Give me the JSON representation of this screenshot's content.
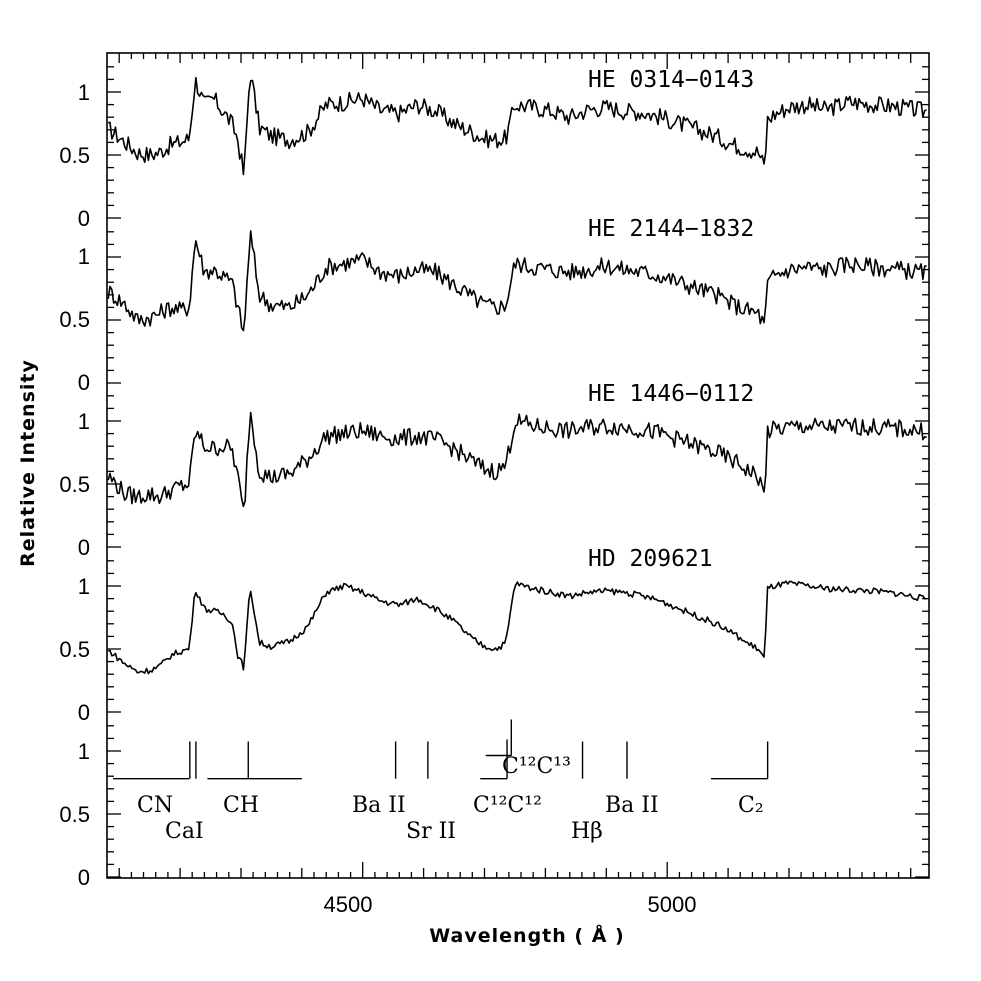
{
  "chart_data": {
    "type": "line",
    "xlabel": "Wavelength ( Å )",
    "ylabel": "Relative Intensity",
    "xlim": [
      4080,
      5430
    ],
    "x_ticks": [
      "4500",
      "5000"
    ],
    "panel_y_ticks": [
      "0",
      "0.5",
      "1"
    ],
    "panels": [
      {
        "name": "HE 0314−0143",
        "x": [
          4085,
          4110,
          4130,
          4150,
          4165,
          4175,
          4185,
          4200,
          4215,
          4225,
          4240,
          4255,
          4270,
          4285,
          4295,
          4305,
          4315,
          4330,
          4350,
          4380,
          4410,
          4440,
          4470,
          4500,
          4530,
          4560,
          4590,
          4620,
          4650,
          4680,
          4700,
          4720,
          4735,
          4750,
          4780,
          4810,
          4840,
          4870,
          4900,
          4930,
          4960,
          4990,
          5020,
          5050,
          5080,
          5110,
          5130,
          5150,
          5160,
          5165,
          5175,
          5200,
          5230,
          5260,
          5300,
          5340,
          5380,
          5420
        ],
        "values": [
          0.7,
          0.6,
          0.52,
          0.5,
          0.52,
          0.55,
          0.58,
          0.6,
          0.63,
          1.1,
          0.9,
          0.95,
          0.85,
          0.75,
          0.62,
          0.33,
          1.18,
          0.72,
          0.65,
          0.62,
          0.68,
          0.9,
          0.92,
          0.95,
          0.85,
          0.83,
          0.9,
          0.85,
          0.75,
          0.68,
          0.63,
          0.62,
          0.63,
          0.9,
          0.88,
          0.85,
          0.8,
          0.86,
          0.88,
          0.85,
          0.84,
          0.8,
          0.75,
          0.7,
          0.65,
          0.58,
          0.55,
          0.52,
          0.4,
          0.78,
          0.82,
          0.88,
          0.9,
          0.86,
          0.92,
          0.9,
          0.88,
          0.85
        ]
      },
      {
        "name": "HE 2144−1832",
        "x": [
          4085,
          4110,
          4130,
          4150,
          4165,
          4175,
          4185,
          4200,
          4215,
          4225,
          4240,
          4255,
          4270,
          4285,
          4295,
          4305,
          4315,
          4330,
          4350,
          4380,
          4410,
          4440,
          4470,
          4500,
          4530,
          4560,
          4590,
          4620,
          4650,
          4680,
          4700,
          4720,
          4735,
          4750,
          4780,
          4810,
          4840,
          4870,
          4900,
          4930,
          4960,
          4990,
          5020,
          5050,
          5080,
          5110,
          5130,
          5150,
          5160,
          5165,
          5175,
          5200,
          5230,
          5260,
          5300,
          5340,
          5380,
          5420
        ],
        "values": [
          0.72,
          0.62,
          0.5,
          0.52,
          0.55,
          0.58,
          0.6,
          0.58,
          0.6,
          1.15,
          0.88,
          0.9,
          0.85,
          0.8,
          0.6,
          0.38,
          1.2,
          0.7,
          0.62,
          0.6,
          0.7,
          0.92,
          0.95,
          0.98,
          0.88,
          0.85,
          0.9,
          0.88,
          0.78,
          0.68,
          0.62,
          0.6,
          0.62,
          0.95,
          0.92,
          0.9,
          0.88,
          0.9,
          0.93,
          0.9,
          0.88,
          0.85,
          0.8,
          0.75,
          0.7,
          0.62,
          0.58,
          0.55,
          0.45,
          0.78,
          0.85,
          0.9,
          0.92,
          0.9,
          0.95,
          0.92,
          0.9,
          0.88
        ]
      },
      {
        "name": "HE 1446−0112",
        "x": [
          4085,
          4110,
          4130,
          4150,
          4165,
          4175,
          4185,
          4200,
          4215,
          4225,
          4240,
          4255,
          4270,
          4285,
          4295,
          4305,
          4315,
          4330,
          4350,
          4380,
          4410,
          4440,
          4470,
          4500,
          4530,
          4560,
          4590,
          4620,
          4650,
          4680,
          4700,
          4720,
          4735,
          4750,
          4780,
          4810,
          4840,
          4870,
          4900,
          4930,
          4960,
          4990,
          5020,
          5050,
          5080,
          5110,
          5130,
          5150,
          5160,
          5165,
          5175,
          5200,
          5230,
          5260,
          5300,
          5340,
          5380,
          5420
        ],
        "values": [
          0.55,
          0.42,
          0.4,
          0.42,
          0.4,
          0.42,
          0.45,
          0.48,
          0.5,
          0.92,
          0.8,
          0.78,
          0.8,
          0.78,
          0.55,
          0.25,
          1.1,
          0.6,
          0.55,
          0.58,
          0.7,
          0.88,
          0.9,
          0.92,
          0.88,
          0.86,
          0.88,
          0.85,
          0.78,
          0.68,
          0.62,
          0.6,
          0.65,
          1.0,
          0.96,
          0.94,
          0.92,
          0.95,
          0.96,
          0.95,
          0.93,
          0.9,
          0.85,
          0.8,
          0.75,
          0.68,
          0.62,
          0.55,
          0.4,
          0.92,
          0.93,
          0.95,
          0.96,
          0.95,
          0.96,
          0.95,
          0.94,
          0.92
        ]
      },
      {
        "name": "HD 209621",
        "x": [
          4085,
          4110,
          4130,
          4150,
          4165,
          4175,
          4185,
          4200,
          4215,
          4225,
          4240,
          4255,
          4270,
          4285,
          4295,
          4305,
          4315,
          4330,
          4350,
          4380,
          4410,
          4440,
          4470,
          4500,
          4530,
          4560,
          4590,
          4620,
          4650,
          4680,
          4700,
          4720,
          4735,
          4750,
          4780,
          4810,
          4840,
          4870,
          4900,
          4930,
          4960,
          4990,
          5020,
          5050,
          5080,
          5110,
          5130,
          5150,
          5160,
          5165,
          5175,
          5200,
          5230,
          5260,
          5300,
          5340,
          5380,
          5420
        ],
        "values": [
          0.48,
          0.38,
          0.32,
          0.33,
          0.36,
          0.4,
          0.45,
          0.48,
          0.5,
          0.98,
          0.82,
          0.8,
          0.78,
          0.72,
          0.45,
          0.35,
          1.0,
          0.55,
          0.52,
          0.56,
          0.68,
          0.95,
          1.0,
          0.95,
          0.88,
          0.85,
          0.9,
          0.82,
          0.72,
          0.58,
          0.52,
          0.5,
          0.55,
          1.02,
          0.98,
          0.95,
          0.92,
          0.95,
          0.96,
          0.95,
          0.92,
          0.88,
          0.82,
          0.76,
          0.7,
          0.62,
          0.55,
          0.5,
          0.42,
          0.98,
          1.0,
          1.02,
          1.0,
          0.98,
          0.97,
          0.96,
          0.94,
          0.9
        ]
      }
    ],
    "line_ids": [
      {
        "label": "CN",
        "x": 4216
      },
      {
        "label": "CaI",
        "x": 4226
      },
      {
        "label": "CH",
        "x": 4300
      },
      {
        "label": "Ba  II",
        "x": 4554
      },
      {
        "label": "Sr  II",
        "x": 4607
      },
      {
        "label": "C¹²C¹²",
        "x": 4737
      },
      {
        "label": "C¹²C¹³",
        "x": 4744
      },
      {
        "label": "Hβ",
        "x": 4861
      },
      {
        "label": "Ba  II",
        "x": 4934
      },
      {
        "label": "C₂",
        "x": 5165
      }
    ]
  }
}
